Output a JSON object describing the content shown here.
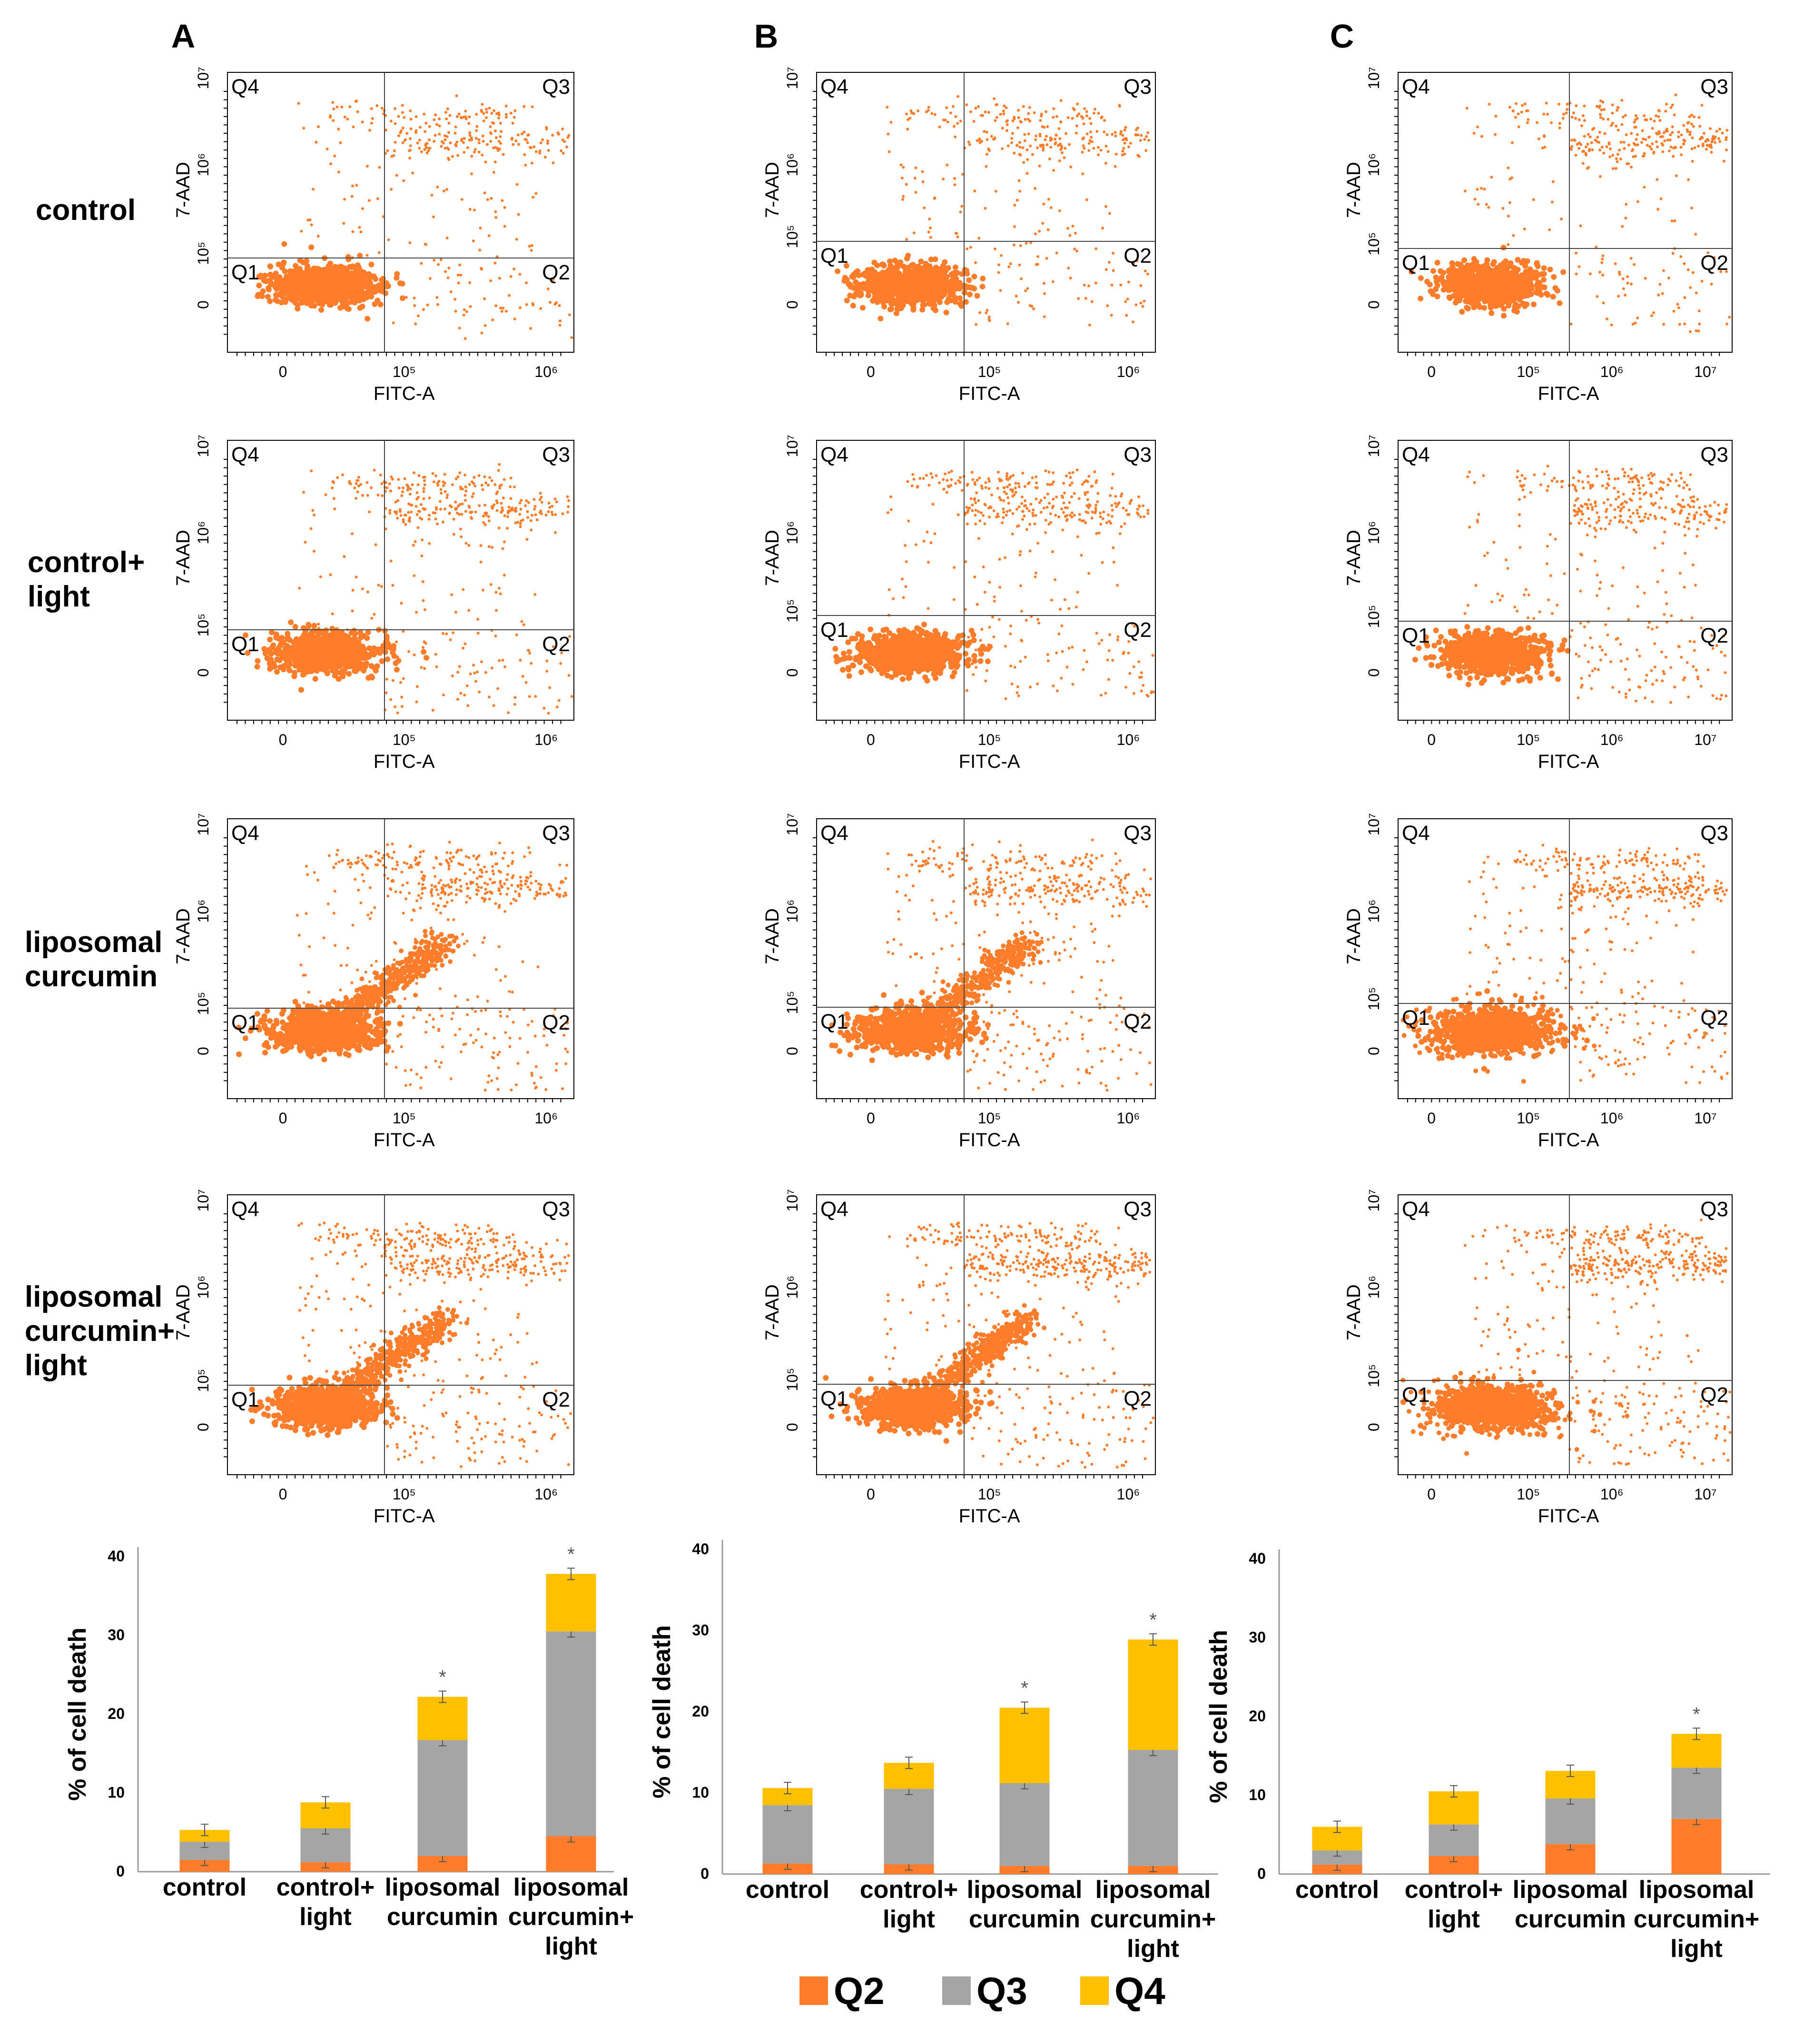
{
  "panels": [
    {
      "letter": "A"
    },
    {
      "letter": "B"
    },
    {
      "letter": "C"
    }
  ],
  "row_labels": [
    [
      "control"
    ],
    [
      "control+",
      "light"
    ],
    [
      "liposomal",
      "curcumin"
    ],
    [
      "liposomal",
      "curcumin+",
      "light"
    ]
  ],
  "flow_axes": {
    "x_label": "FITC-A",
    "y_label": "7-AAD",
    "x_ticks_AB": [
      "0",
      "10⁵",
      "10⁶"
    ],
    "x_ticks_C": [
      "0",
      "10⁵",
      "10⁶",
      "10⁷"
    ],
    "y_ticks": [
      "0",
      "10⁵",
      "10⁶",
      "10⁷"
    ],
    "quadrants": [
      "Q1",
      "Q2",
      "Q3",
      "Q4"
    ]
  },
  "colors": {
    "q2": "#FF7C2B",
    "q3": "#A5A5A5",
    "q4": "#FFC000",
    "dots": "#FF7C2B",
    "axis": "#000000"
  },
  "legend": [
    "Q2",
    "Q3",
    "Q4"
  ],
  "chart_data": [
    {
      "type": "bar",
      "stacked": true,
      "panel": "A",
      "ylabel": "% of cell death",
      "ylim": [
        0,
        40
      ],
      "yticks": [
        "0",
        "10",
        "20",
        "30",
        "40"
      ],
      "categories": [
        [
          "control"
        ],
        [
          "control+",
          "light"
        ],
        [
          "liposomal",
          "curcumin"
        ],
        [
          "liposomal",
          "curcumin+",
          "light"
        ]
      ],
      "series": [
        {
          "name": "Q2",
          "values": [
            1.5,
            1.2,
            2.0,
            4.5
          ]
        },
        {
          "name": "Q3",
          "values": [
            2.3,
            4.3,
            14.7,
            26.0
          ]
        },
        {
          "name": "Q4",
          "values": [
            1.5,
            3.3,
            5.5,
            7.3
          ]
        }
      ],
      "significance": [
        "",
        "",
        "*",
        "*"
      ]
    },
    {
      "type": "bar",
      "stacked": true,
      "panel": "B",
      "ylabel": "% of cell death",
      "ylim": [
        0,
        40
      ],
      "yticks": [
        "0",
        "10",
        "20",
        "30",
        "40"
      ],
      "categories": [
        [
          "control"
        ],
        [
          "control+",
          "light"
        ],
        [
          "liposomal",
          "curcumin"
        ],
        [
          "liposomal",
          "curcumin+",
          "light"
        ]
      ],
      "series": [
        {
          "name": "Q2",
          "values": [
            1.3,
            1.2,
            1.0,
            1.0
          ]
        },
        {
          "name": "Q3",
          "values": [
            7.2,
            9.3,
            10.2,
            14.3
          ]
        },
        {
          "name": "Q4",
          "values": [
            2.1,
            3.2,
            9.3,
            13.6
          ]
        }
      ],
      "significance": [
        "",
        "",
        "*",
        "*"
      ]
    },
    {
      "type": "bar",
      "stacked": true,
      "panel": "C",
      "ylabel": "% of cell death",
      "ylim": [
        0,
        40
      ],
      "yticks": [
        "0",
        "10",
        "20",
        "30",
        "40"
      ],
      "categories": [
        [
          "control"
        ],
        [
          "control+",
          "light"
        ],
        [
          "liposomal",
          "curcumin"
        ],
        [
          "liposomal",
          "curcumin+",
          "light"
        ]
      ],
      "series": [
        {
          "name": "Q2",
          "values": [
            1.2,
            2.3,
            3.8,
            7.0
          ]
        },
        {
          "name": "Q3",
          "values": [
            1.8,
            4.0,
            5.8,
            6.5
          ]
        },
        {
          "name": "Q4",
          "values": [
            3.0,
            4.2,
            3.5,
            4.3
          ]
        }
      ],
      "significance": [
        "",
        "",
        "",
        "*"
      ]
    }
  ]
}
